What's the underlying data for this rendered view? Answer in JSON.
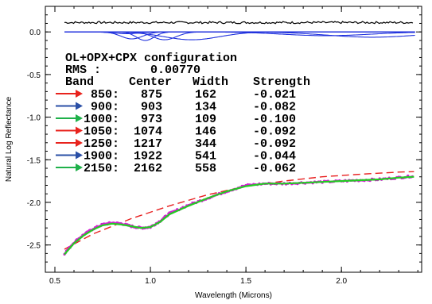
{
  "chart_data": {
    "type": "line",
    "xlabel": "Wavelength (Microns)",
    "ylabel": "Natural Log Reflectance",
    "xlim": [
      0.45,
      2.42
    ],
    "ylim": [
      -2.82,
      0.3
    ],
    "xticks": [
      0.5,
      1.0,
      1.5,
      2.0
    ],
    "xtick_labels": [
      "0.5",
      "1.0",
      "1.5",
      "2.0"
    ],
    "yticks": [
      0.0,
      -0.5,
      -1.0,
      -1.5,
      -2.0,
      -2.5
    ],
    "ytick_labels": [
      "0.0",
      "-0.5",
      "-1.0",
      "-1.5",
      "-2.0",
      "-2.5"
    ],
    "grid": false,
    "annotation": {
      "config_line": "OL+OPX+CPX configuration",
      "rms_label": "RMS :",
      "rms_value": "0.00770",
      "headers": [
        "Band",
        "Center",
        "Width",
        "Strength"
      ],
      "bands": [
        {
          "band": "850:",
          "center": "875",
          "width": "162",
          "strength": "-0.021",
          "arrow_color": "#e8231d"
        },
        {
          "band": "900:",
          "center": "903",
          "width": "134",
          "strength": "-0.082",
          "arrow_color": "#2a4fa6"
        },
        {
          "band": "1000:",
          "center": "973",
          "width": "109",
          "strength": "-0.100",
          "arrow_color": "#1fb14a"
        },
        {
          "band": "1050:",
          "center": "1074",
          "width": "146",
          "strength": "-0.092",
          "arrow_color": "#e8231d"
        },
        {
          "band": "1250:",
          "center": "1217",
          "width": "344",
          "strength": "-0.092",
          "arrow_color": "#e8231d"
        },
        {
          "band": "1900:",
          "center": "1922",
          "width": "541",
          "strength": "-0.044",
          "arrow_color": "#2a4fa6"
        },
        {
          "band": "2150:",
          "center": "2162",
          "width": "558",
          "strength": "-0.062",
          "arrow_color": "#1fb14a"
        }
      ]
    },
    "series": [
      {
        "style": "residual",
        "color": "#000000",
        "offset": 0.11,
        "x": [
          0.55,
          2.38
        ]
      },
      {
        "style": "gaussian-bands",
        "color": "#2233dd",
        "centers": [
          0.875,
          0.903,
          0.973,
          1.074,
          1.217,
          1.922,
          2.162
        ],
        "widths": [
          0.162,
          0.134,
          0.109,
          0.146,
          0.344,
          0.541,
          0.558
        ],
        "strengths": [
          -0.021,
          -0.082,
          -0.1,
          -0.092,
          -0.092,
          -0.044,
          -0.062
        ],
        "baseline": 0.0
      },
      {
        "style": "continuum",
        "color": "#e82020",
        "dashed": true,
        "x": [
          0.55,
          0.7,
          0.9,
          1.1,
          1.3,
          1.5,
          1.7,
          1.9,
          2.1,
          2.3,
          2.38
        ],
        "y": [
          -2.55,
          -2.37,
          -2.19,
          -2.04,
          -1.91,
          -1.81,
          -1.75,
          -1.7,
          -1.67,
          -1.645,
          -1.64
        ]
      },
      {
        "style": "observed",
        "color": "#d020d0",
        "x": [
          0.55,
          0.6,
          0.65,
          0.7,
          0.75,
          0.8,
          0.85,
          0.9,
          0.95,
          1.0,
          1.05,
          1.1,
          1.2,
          1.3,
          1.4,
          1.5,
          1.6,
          1.7,
          1.8,
          1.9,
          2.0,
          2.1,
          2.2,
          2.3,
          2.38
        ],
        "y": [
          -2.6,
          -2.47,
          -2.38,
          -2.31,
          -2.26,
          -2.24,
          -2.25,
          -2.28,
          -2.3,
          -2.29,
          -2.22,
          -2.13,
          -2.03,
          -1.95,
          -1.87,
          -1.8,
          -1.78,
          -1.78,
          -1.77,
          -1.76,
          -1.75,
          -1.74,
          -1.73,
          -1.71,
          -1.69
        ]
      },
      {
        "style": "model",
        "color": "#22cc22",
        "x": [
          0.55,
          0.6,
          0.65,
          0.7,
          0.75,
          0.8,
          0.85,
          0.9,
          0.95,
          1.0,
          1.05,
          1.1,
          1.2,
          1.3,
          1.4,
          1.5,
          1.6,
          1.7,
          1.8,
          1.9,
          2.0,
          2.1,
          2.2,
          2.3,
          2.38
        ],
        "y": [
          -2.61,
          -2.48,
          -2.39,
          -2.32,
          -2.27,
          -2.25,
          -2.26,
          -2.28,
          -2.3,
          -2.29,
          -2.23,
          -2.14,
          -2.04,
          -1.95,
          -1.87,
          -1.81,
          -1.78,
          -1.78,
          -1.77,
          -1.76,
          -1.75,
          -1.74,
          -1.73,
          -1.71,
          -1.7
        ]
      }
    ]
  }
}
